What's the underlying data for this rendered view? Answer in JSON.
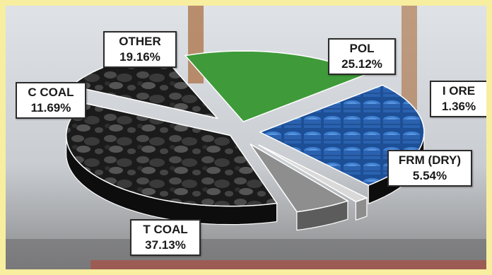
{
  "chart_data": {
    "type": "pie",
    "style": "3d-exploded",
    "title": "",
    "slices": [
      {
        "label": "T COAL",
        "value": 37.13,
        "display": "37.13%",
        "color": "#1f1f1f",
        "texture": "coal"
      },
      {
        "label": "C COAL",
        "value": 11.69,
        "display": "11.69%",
        "color": "#151515",
        "texture": "coal"
      },
      {
        "label": "OTHER",
        "value": 19.16,
        "display": "19.16%",
        "color": "#3f9a3a",
        "texture": "solid"
      },
      {
        "label": "POL",
        "value": 25.12,
        "display": "25.12%",
        "color": "#2a5fa8",
        "texture": "barrels"
      },
      {
        "label": "I ORE",
        "value": 1.36,
        "display": "1.36%",
        "color": "#d9d9d9",
        "texture": "solid"
      },
      {
        "label": "FRM (DRY)",
        "value": 5.54,
        "display": "5.54%",
        "color": "#8e8e8e",
        "texture": "solid"
      }
    ]
  },
  "colors": {
    "frame": "#f7eea0",
    "label_border": "#2b2b2b",
    "label_bg": "#ffffff"
  }
}
